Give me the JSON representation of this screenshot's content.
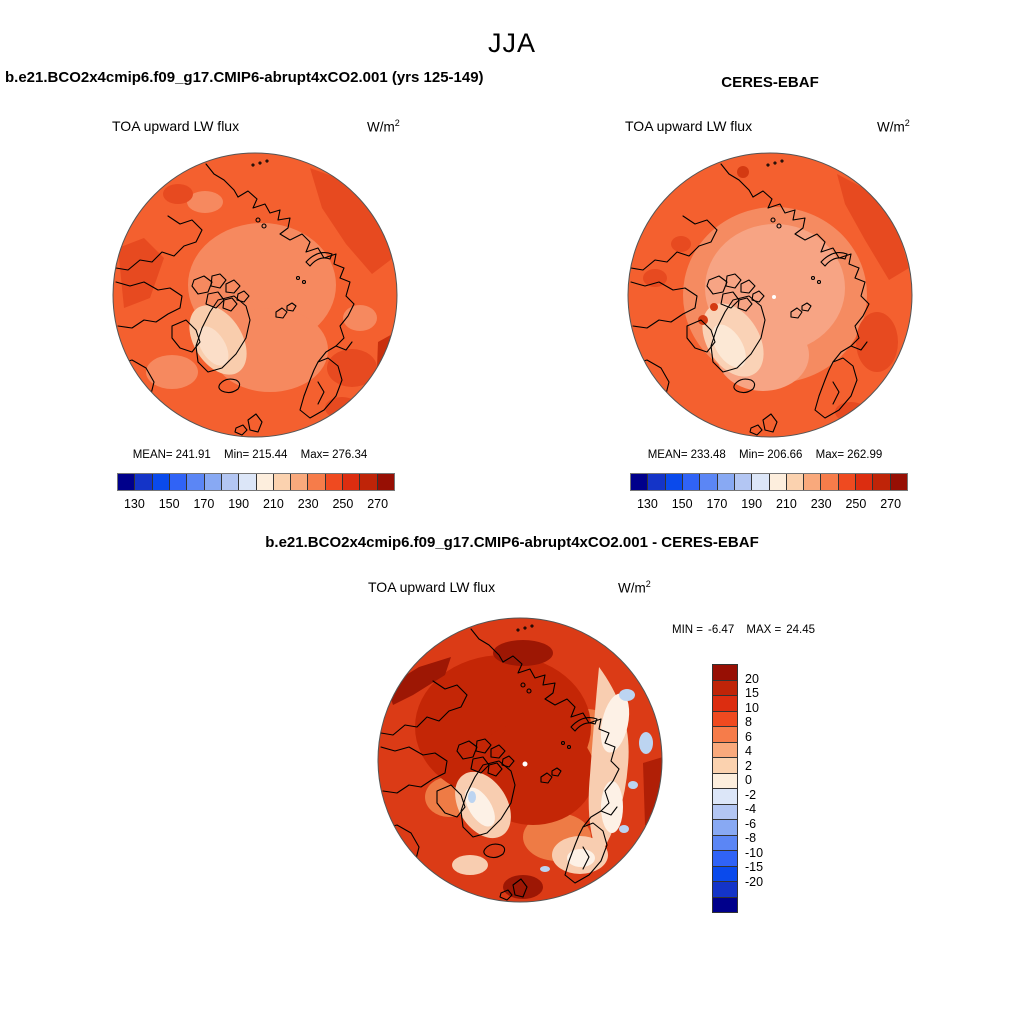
{
  "title": "JJA",
  "units_display": {
    "base": "W/m",
    "exponent": "2"
  },
  "panels": {
    "model": {
      "header": "b.e21.BCO2x4cmip6.f09_g17.CMIP6-abrupt4xCO2.001 (yrs 125-149)",
      "variable": "TOA upward LW flux",
      "stats": {
        "mean_label": "MEAN=",
        "mean": "241.91",
        "min_label": "Min=",
        "min": "215.44",
        "max_label": "Max=",
        "max": "276.34"
      }
    },
    "obs": {
      "header": "CERES-EBAF",
      "variable": "TOA upward LW flux",
      "stats": {
        "mean_label": "MEAN=",
        "mean": "233.48",
        "min_label": "Min=",
        "min": "206.66",
        "max_label": "Max=",
        "max": "262.99"
      }
    },
    "diff": {
      "header": "b.e21.BCO2x4cmip6.f09_g17.CMIP6-abrupt4xCO2.001 - CERES-EBAF",
      "variable": "TOA upward LW flux",
      "stats": {
        "min_label": "MIN =",
        "min": "-6.47",
        "max_label": "MAX =",
        "max": "24.45"
      }
    }
  },
  "colorbar_absolute": {
    "orientation": "horizontal",
    "colors": [
      "#00008B",
      "#1434C8",
      "#0A4AEC",
      "#3063F6",
      "#5B86F5",
      "#88A9F3",
      "#B3C6F3",
      "#DCE6F8",
      "#FDEEDD",
      "#FBD2AF",
      "#F9A97C",
      "#F67C4A",
      "#EF4A20",
      "#DC2D10",
      "#BF2408",
      "#970F04"
    ],
    "tick_labels": [
      "130",
      "150",
      "170",
      "190",
      "210",
      "230",
      "250",
      "270"
    ]
  },
  "colorbar_difference": {
    "orientation": "vertical",
    "colors": [
      "#970F04",
      "#BF2408",
      "#DC2D10",
      "#EF4A20",
      "#F67C4A",
      "#F9A97C",
      "#FBD2AF",
      "#FDEEDD",
      "#DCE6F8",
      "#B3C6F3",
      "#88A9F3",
      "#5B86F5",
      "#3063F6",
      "#0A4AEC",
      "#1434C8",
      "#00008B"
    ],
    "tick_labels": [
      "20",
      "15",
      "10",
      "8",
      "6",
      "4",
      "2",
      "0",
      "-2",
      "-4",
      "-6",
      "-8",
      "-10",
      "-15",
      "-20"
    ]
  },
  "chart_data": [
    {
      "type": "heatmap",
      "subtype": "polar_stereographic_filled_contour",
      "panel": "model",
      "title": "b.e21.BCO2x4cmip6.f09_g17.CMIP6-abrupt4xCO2.001 (yrs 125-149)",
      "season": "JJA",
      "variable": "TOA upward LW flux",
      "units": "W/m2",
      "stats": {
        "mean": 241.91,
        "min": 215.44,
        "max": 276.34
      },
      "contour_levels": [
        130,
        140,
        150,
        160,
        170,
        180,
        190,
        200,
        210,
        220,
        230,
        240,
        250,
        260,
        270
      ],
      "labeled_levels": [
        130,
        150,
        170,
        190,
        210,
        230,
        250,
        270
      ],
      "palette": [
        "#00008B",
        "#1434C8",
        "#0A4AEC",
        "#3063F6",
        "#5B86F5",
        "#88A9F3",
        "#B3C6F3",
        "#DCE6F8",
        "#FDEEDD",
        "#FBD2AF",
        "#F9A97C",
        "#F67C4A",
        "#EF4A20",
        "#DC2D10",
        "#BF2408",
        "#970F04"
      ],
      "description": "Arctic mostly 230-250 W/m2 (orange); lighter 210-230 over the central Arctic Ocean; palest ~200-215 over Greenland; darker 250-270 patches near the map edge."
    },
    {
      "type": "heatmap",
      "subtype": "polar_stereographic_filled_contour",
      "panel": "observations",
      "title": "CERES-EBAF",
      "season": "JJA",
      "variable": "TOA upward LW flux",
      "units": "W/m2",
      "stats": {
        "mean": 233.48,
        "min": 206.66,
        "max": 262.99
      },
      "contour_levels": [
        130,
        140,
        150,
        160,
        170,
        180,
        190,
        200,
        210,
        220,
        230,
        240,
        250,
        260,
        270
      ],
      "labeled_levels": [
        130,
        150,
        170,
        190,
        210,
        230,
        250,
        270
      ],
      "palette": [
        "#00008B",
        "#1434C8",
        "#0A4AEC",
        "#3063F6",
        "#5B86F5",
        "#88A9F3",
        "#B3C6F3",
        "#DCE6F8",
        "#FDEEDD",
        "#FBD2AF",
        "#F9A97C",
        "#F67C4A",
        "#EF4A20",
        "#DC2D10",
        "#BF2408",
        "#970F04"
      ],
      "description": "Similar pattern but lower values: large pale peach central Arctic region (~210-225), very pale Greenland, orange ring 230-250 toward the edge."
    },
    {
      "type": "heatmap",
      "subtype": "polar_stereographic_filled_contour",
      "panel": "difference",
      "title": "b.e21.BCO2x4cmip6.f09_g17.CMIP6-abrupt4xCO2.001 - CERES-EBAF",
      "season": "JJA",
      "variable": "TOA upward LW flux",
      "units": "W/m2",
      "stats": {
        "min": -6.47,
        "max": 24.45
      },
      "contour_levels": [
        -20,
        -15,
        -10,
        -8,
        -6,
        -4,
        -2,
        0,
        2,
        4,
        6,
        8,
        10,
        15,
        20
      ],
      "palette_top_to_bottom": [
        "#970F04",
        "#BF2408",
        "#DC2D10",
        "#EF4A20",
        "#F67C4A",
        "#F9A97C",
        "#FBD2AF",
        "#FDEEDD",
        "#DCE6F8",
        "#B3C6F3",
        "#88A9F3",
        "#5B86F5",
        "#3063F6",
        "#0A4AEC",
        "#1434C8",
        "#00008B"
      ],
      "description": "Model minus CERES-EBAF: positive (red, 8-20+) over most of the Arctic, darkest near the pole and along the Alaskan/Siberian sectors; near zero (white) band over the Atlantic sector, Greenland and Scandinavia; small negative (light blue, -2 to -4) patches near the Barents/Norwegian Sea edge."
    }
  ]
}
